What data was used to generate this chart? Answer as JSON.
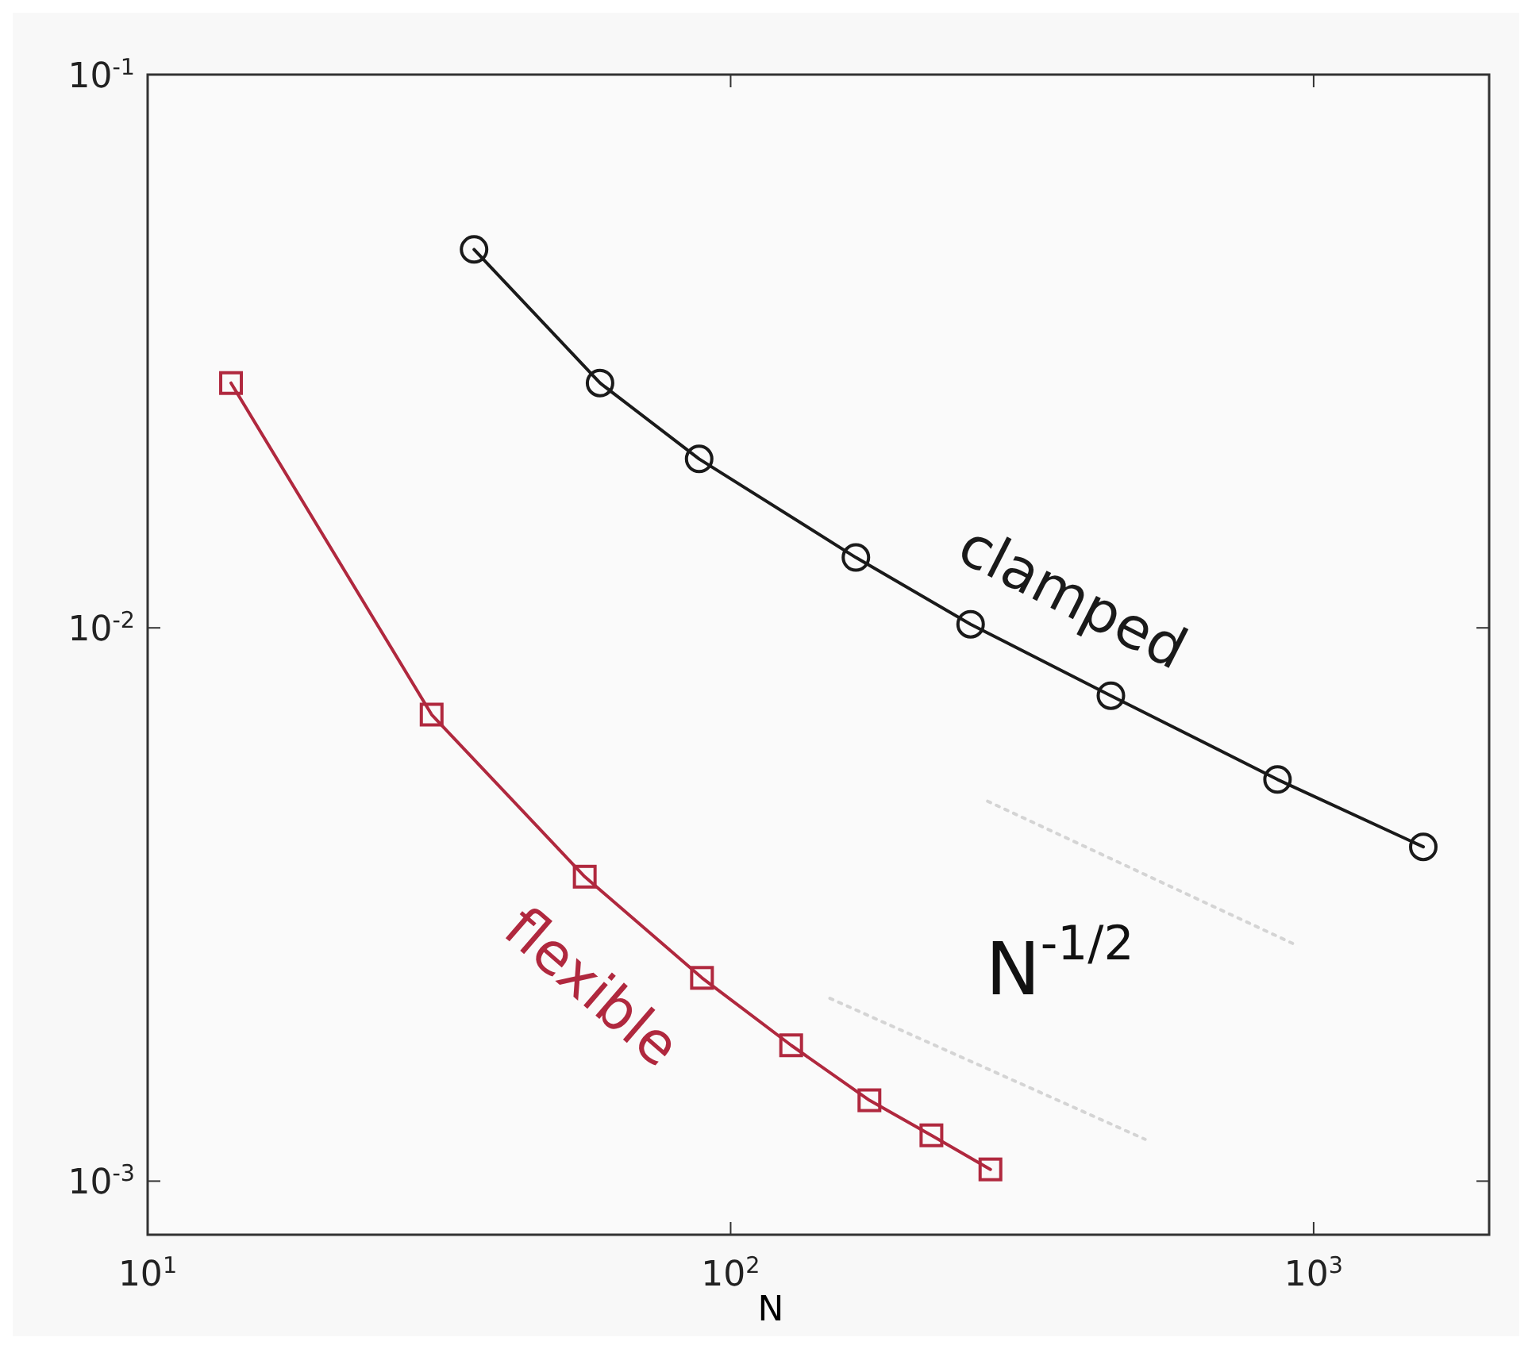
{
  "chart_data": {
    "type": "line",
    "xlabel": "N",
    "log": "xy",
    "xlim": [
      10,
      2000
    ],
    "ylim": [
      0.0008,
      0.1
    ],
    "xticks": [
      {
        "value": 10,
        "label": "10$^{1}$"
      },
      {
        "value": 100,
        "label": "10$^{2}$"
      },
      {
        "value": 1000,
        "label": "10$^{3}$"
      }
    ],
    "yticks": [
      {
        "value": 0.001,
        "label": "10$^{-3}$"
      },
      {
        "value": 0.01,
        "label": "10$^{-2}$"
      },
      {
        "value": 0.1,
        "label": "10$^{-1}$"
      }
    ],
    "series": [
      {
        "name": "clamped",
        "color": "#1a1a1a",
        "marker": "circle",
        "x": [
          36.3,
          59.7,
          88.3,
          164,
          258,
          449,
          867,
          1542
        ],
        "values": [
          0.0483,
          0.0277,
          0.0202,
          0.0134,
          0.01015,
          0.00754,
          0.00532,
          0.00402
        ]
      },
      {
        "name": "flexible",
        "color": "#b0283e",
        "marker": "square",
        "x": [
          13.9,
          30.7,
          56.2,
          89.3,
          127,
          173,
          221,
          279
        ],
        "values": [
          0.0277,
          0.00697,
          0.00355,
          0.00233,
          0.00176,
          0.0014,
          0.00121,
          0.00105
        ]
      },
      {
        "color": "#d4d4d4",
        "marker": "none",
        "line_style": "dotted",
        "x": [
          276,
          920
        ],
        "values": [
          0.00486,
          0.00269
        ]
      },
      {
        "color": "#d4d4d4",
        "marker": "none",
        "line_style": "dotted",
        "x": [
          148,
          514
        ],
        "values": [
          0.00214,
          0.00119
        ]
      }
    ],
    "annotations": [
      "N$^{-1/2}$"
    ]
  }
}
